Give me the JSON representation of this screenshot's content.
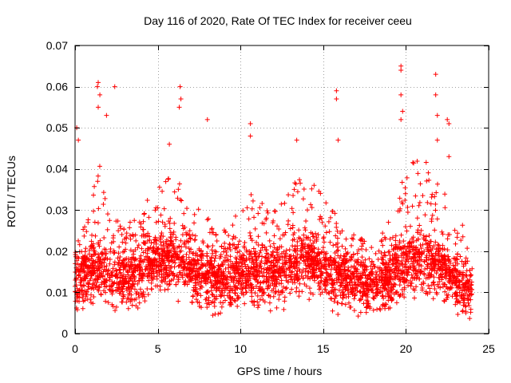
{
  "chart_data": {
    "type": "scatter",
    "title": "Day 116 of 2020, Rate Of TEC Index for receiver ceeu",
    "xlabel": "GPS time / hours",
    "ylabel": "ROTI / TECUs",
    "xlim": [
      0,
      25
    ],
    "ylim": [
      0,
      0.07
    ],
    "xticks": [
      "0",
      "5",
      "10",
      "15",
      "20",
      "25"
    ],
    "yticks": [
      "0",
      "0.01",
      "0.02",
      "0.03",
      "0.04",
      "0.05",
      "0.06",
      "0.07"
    ],
    "grid": true,
    "marker": "plus",
    "series": [
      {
        "name": "ROTI",
        "color": "#ff0000",
        "profile": {
          "x": [
            0,
            0.5,
            1,
            1.5,
            2,
            3,
            4,
            5,
            6,
            7,
            8,
            9,
            10,
            11,
            12,
            13,
            14,
            15,
            16,
            17,
            18,
            19,
            20,
            21,
            22,
            23,
            24
          ],
          "median": [
            0.013,
            0.013,
            0.014,
            0.016,
            0.014,
            0.013,
            0.015,
            0.017,
            0.019,
            0.016,
            0.014,
            0.013,
            0.014,
            0.015,
            0.014,
            0.016,
            0.018,
            0.016,
            0.014,
            0.012,
            0.012,
            0.013,
            0.017,
            0.018,
            0.016,
            0.013,
            0.01
          ],
          "spread": [
            0.006,
            0.008,
            0.012,
            0.016,
            0.01,
            0.008,
            0.01,
            0.012,
            0.014,
            0.01,
            0.009,
            0.008,
            0.012,
            0.012,
            0.011,
            0.013,
            0.014,
            0.011,
            0.009,
            0.007,
            0.007,
            0.009,
            0.015,
            0.016,
            0.014,
            0.01,
            0.008
          ]
        },
        "peaks": [
          {
            "x": 0.1,
            "y": 0.05
          },
          {
            "x": 0.2,
            "y": 0.047
          },
          {
            "x": 1.35,
            "y": 0.06
          },
          {
            "x": 1.4,
            "y": 0.061
          },
          {
            "x": 1.5,
            "y": 0.058
          },
          {
            "x": 1.4,
            "y": 0.055
          },
          {
            "x": 1.9,
            "y": 0.053
          },
          {
            "x": 2.4,
            "y": 0.06
          },
          {
            "x": 6.35,
            "y": 0.06
          },
          {
            "x": 6.4,
            "y": 0.057
          },
          {
            "x": 6.3,
            "y": 0.055
          },
          {
            "x": 5.7,
            "y": 0.046
          },
          {
            "x": 8.0,
            "y": 0.052
          },
          {
            "x": 10.6,
            "y": 0.051
          },
          {
            "x": 10.6,
            "y": 0.048
          },
          {
            "x": 13.4,
            "y": 0.047
          },
          {
            "x": 15.8,
            "y": 0.059
          },
          {
            "x": 15.8,
            "y": 0.057
          },
          {
            "x": 15.9,
            "y": 0.047
          },
          {
            "x": 19.7,
            "y": 0.065
          },
          {
            "x": 19.7,
            "y": 0.064
          },
          {
            "x": 19.7,
            "y": 0.058
          },
          {
            "x": 19.7,
            "y": 0.052
          },
          {
            "x": 19.8,
            "y": 0.054
          },
          {
            "x": 21.8,
            "y": 0.063
          },
          {
            "x": 21.8,
            "y": 0.058
          },
          {
            "x": 21.9,
            "y": 0.053
          },
          {
            "x": 22.5,
            "y": 0.052
          },
          {
            "x": 22.6,
            "y": 0.051
          },
          {
            "x": 21.9,
            "y": 0.047
          },
          {
            "x": 22.6,
            "y": 0.043
          }
        ]
      }
    ]
  }
}
